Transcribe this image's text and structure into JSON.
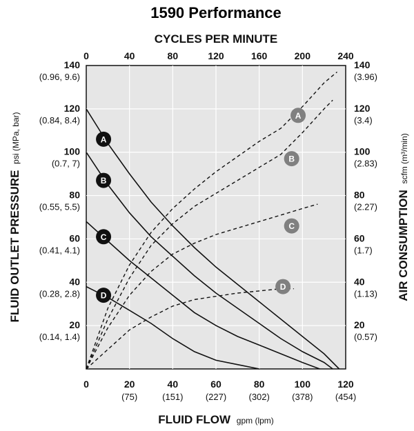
{
  "chart_data": {
    "type": "line",
    "title": "1590 Performance",
    "top_axis": {
      "title": "CYCLES PER MINUTE",
      "ticks": [
        "0",
        "40",
        "80",
        "120",
        "160",
        "200",
        "240"
      ]
    },
    "x_axis": {
      "title": "FLUID FLOW",
      "unit": "gpm (lpm)",
      "range": [
        0,
        120
      ],
      "ticks": [
        {
          "value": 0,
          "label": "0",
          "sub": ""
        },
        {
          "value": 20,
          "label": "20",
          "sub": "(75)"
        },
        {
          "value": 40,
          "label": "40",
          "sub": "(151)"
        },
        {
          "value": 60,
          "label": "60",
          "sub": "(227)"
        },
        {
          "value": 80,
          "label": "80",
          "sub": "(302)"
        },
        {
          "value": 100,
          "label": "100",
          "sub": "(378)"
        },
        {
          "value": 120,
          "label": "120",
          "sub": "(454)"
        }
      ]
    },
    "left_axis": {
      "title": "FLUID OUTLET PRESSURE",
      "unit": "psi (MPa, bar)",
      "range": [
        0,
        140
      ],
      "ticks": [
        {
          "value": 20,
          "label": "20",
          "sub": "(0.14, 1.4)"
        },
        {
          "value": 40,
          "label": "40",
          "sub": "(0.28, 2.8)"
        },
        {
          "value": 60,
          "label": "60",
          "sub": "(0.41, 4.1)"
        },
        {
          "value": 80,
          "label": "80",
          "sub": "(0.55, 5.5)"
        },
        {
          "value": 100,
          "label": "100",
          "sub": "(0.7, 7)"
        },
        {
          "value": 120,
          "label": "120",
          "sub": "(0.84, 8.4)"
        },
        {
          "value": 140,
          "label": "140",
          "sub": "(0.96, 9.6)"
        }
      ]
    },
    "right_axis": {
      "title": "AIR CONSUMPTION",
      "unit": "scfm (m³/min)",
      "ticks": [
        {
          "value": 20,
          "label": "20",
          "sub": "(0.57)"
        },
        {
          "value": 40,
          "label": "40",
          "sub": "(1.13)"
        },
        {
          "value": 60,
          "label": "60",
          "sub": "(1.7)"
        },
        {
          "value": 80,
          "label": "80",
          "sub": "(2.27)"
        },
        {
          "value": 100,
          "label": "100",
          "sub": "(2.83)"
        },
        {
          "value": 120,
          "label": "120",
          "sub": "(3.4)"
        },
        {
          "value": 140,
          "label": "140",
          "sub": "(3.96)"
        }
      ]
    },
    "grid": true,
    "pressure_series": [
      {
        "name": "A",
        "label_at": [
          8,
          106
        ],
        "points": [
          [
            0,
            120
          ],
          [
            5,
            112
          ],
          [
            10,
            104
          ],
          [
            20,
            90
          ],
          [
            30,
            77
          ],
          [
            40,
            66
          ],
          [
            50,
            56
          ],
          [
            60,
            47
          ],
          [
            70,
            39
          ],
          [
            80,
            31
          ],
          [
            90,
            23
          ],
          [
            100,
            15
          ],
          [
            110,
            7
          ],
          [
            117,
            0
          ]
        ]
      },
      {
        "name": "B",
        "label_at": [
          8,
          87
        ],
        "points": [
          [
            0,
            100
          ],
          [
            10,
            85
          ],
          [
            20,
            72
          ],
          [
            30,
            61
          ],
          [
            40,
            52
          ],
          [
            50,
            43
          ],
          [
            60,
            35
          ],
          [
            70,
            28
          ],
          [
            80,
            21
          ],
          [
            90,
            14
          ],
          [
            100,
            8
          ],
          [
            110,
            3
          ],
          [
            114,
            0
          ]
        ]
      },
      {
        "name": "C",
        "label_at": [
          8,
          61
        ],
        "points": [
          [
            0,
            68
          ],
          [
            10,
            59
          ],
          [
            20,
            50
          ],
          [
            30,
            42
          ],
          [
            40,
            34
          ],
          [
            50,
            26
          ],
          [
            60,
            20
          ],
          [
            70,
            15
          ],
          [
            80,
            11
          ],
          [
            90,
            7
          ],
          [
            100,
            3
          ],
          [
            108,
            0
          ]
        ]
      },
      {
        "name": "D",
        "label_at": [
          8,
          34
        ],
        "points": [
          [
            0,
            38
          ],
          [
            10,
            33
          ],
          [
            20,
            27
          ],
          [
            30,
            21
          ],
          [
            40,
            14
          ],
          [
            50,
            8
          ],
          [
            60,
            4
          ],
          [
            70,
            2
          ],
          [
            80,
            0
          ]
        ]
      }
    ],
    "air_series": [
      {
        "name": "A",
        "label_at": [
          98,
          117
        ],
        "points": [
          [
            0,
            0
          ],
          [
            10,
            28
          ],
          [
            20,
            48
          ],
          [
            30,
            63
          ],
          [
            40,
            74
          ],
          [
            50,
            83
          ],
          [
            60,
            91
          ],
          [
            70,
            98
          ],
          [
            80,
            105
          ],
          [
            90,
            111
          ],
          [
            100,
            121
          ],
          [
            110,
            132
          ],
          [
            116,
            137
          ]
        ]
      },
      {
        "name": "B",
        "label_at": [
          95,
          97
        ],
        "points": [
          [
            0,
            0
          ],
          [
            10,
            23
          ],
          [
            20,
            42
          ],
          [
            30,
            57
          ],
          [
            40,
            67
          ],
          [
            50,
            75
          ],
          [
            60,
            81
          ],
          [
            70,
            87
          ],
          [
            80,
            93
          ],
          [
            90,
            99
          ],
          [
            100,
            109
          ],
          [
            110,
            120
          ],
          [
            114,
            124
          ]
        ]
      },
      {
        "name": "C",
        "label_at": [
          95,
          66
        ],
        "points": [
          [
            0,
            0
          ],
          [
            10,
            19
          ],
          [
            20,
            34
          ],
          [
            30,
            45
          ],
          [
            40,
            53
          ],
          [
            50,
            58
          ],
          [
            60,
            62
          ],
          [
            70,
            65
          ],
          [
            80,
            68
          ],
          [
            90,
            71
          ],
          [
            100,
            74
          ],
          [
            107,
            76
          ]
        ]
      },
      {
        "name": "D",
        "label_at": [
          91,
          38
        ],
        "points": [
          [
            0,
            0
          ],
          [
            10,
            9
          ],
          [
            20,
            18
          ],
          [
            30,
            24
          ],
          [
            40,
            29
          ],
          [
            50,
            32
          ],
          [
            60,
            33.5
          ],
          [
            70,
            35
          ],
          [
            80,
            36
          ],
          [
            90,
            37
          ],
          [
            96,
            37
          ]
        ]
      }
    ],
    "colors": {
      "plot_bg": "#e6e6e6",
      "pressure_badge": "#111111",
      "air_badge": "#808080"
    }
  }
}
